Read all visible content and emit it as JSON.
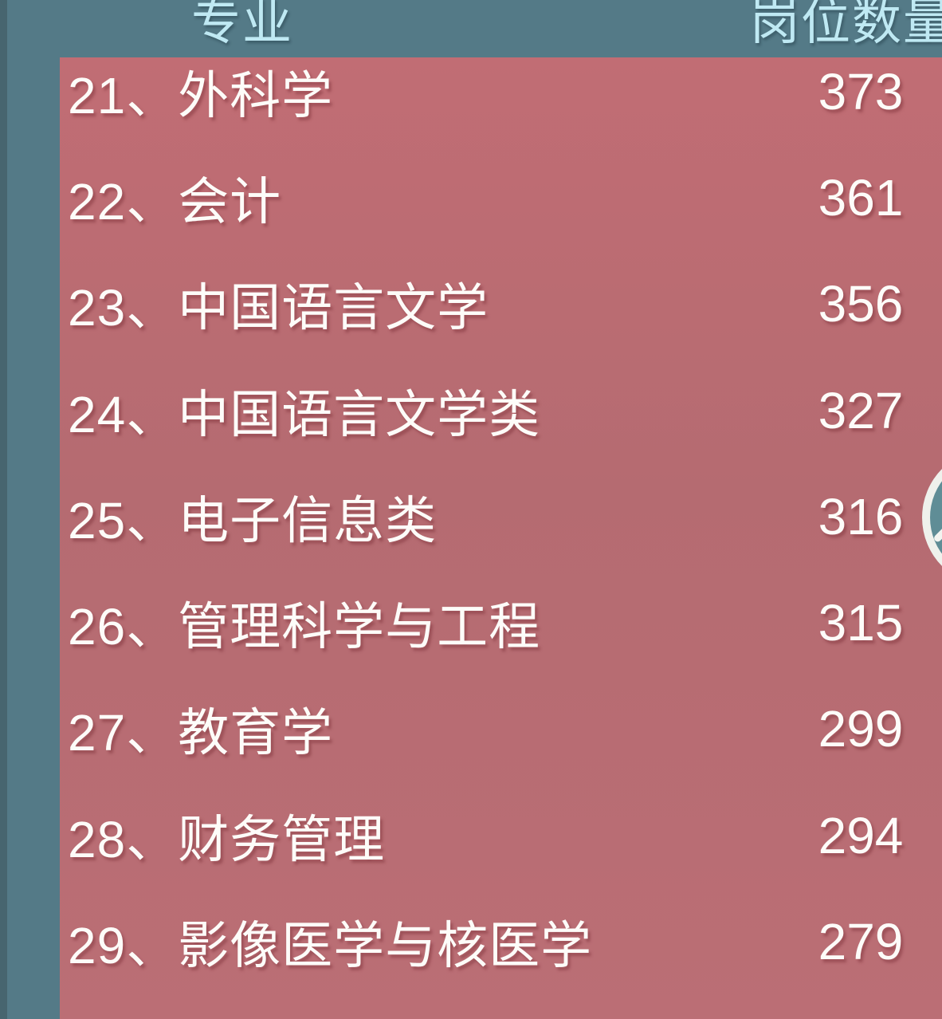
{
  "colors": {
    "background_teal": "#547a87",
    "background_edge": "#47656f",
    "panel_red": "#b96c73",
    "header_text": "#bfe9f3",
    "row_text": "#fdfcf9",
    "fab_ring": "#eff1ec",
    "fab_fill": "#5f8d96"
  },
  "header": {
    "major_column_label": "专业",
    "count_column_label": "岗位数量"
  },
  "table": {
    "rows": [
      {
        "label": "21、外科学",
        "count": "373"
      },
      {
        "label": "22、会计",
        "count": "361"
      },
      {
        "label": "23、中国语言文学",
        "count": "356"
      },
      {
        "label": "24、中国语言文学类",
        "count": "327"
      },
      {
        "label": "25、电子信息类",
        "count": "316"
      },
      {
        "label": "26、管理科学与工程",
        "count": "315"
      },
      {
        "label": "27、教育学",
        "count": "299"
      },
      {
        "label": "28、财务管理",
        "count": "294"
      },
      {
        "label": "29、影像医学与核医学",
        "count": "279"
      }
    ]
  },
  "fab": {
    "icon": "swipe-hint-icon"
  },
  "chart_data": {
    "type": "table",
    "columns": [
      "专业",
      "岗位数量"
    ],
    "ranks": [
      21,
      22,
      23,
      24,
      25,
      26,
      27,
      28,
      29
    ],
    "categories": [
      "外科学",
      "会计",
      "中国语言文学",
      "中国语言文学类",
      "电子信息类",
      "管理科学与工程",
      "教育学",
      "财务管理",
      "影像医学与核医学"
    ],
    "values": [
      373,
      361,
      356,
      327,
      316,
      315,
      299,
      294,
      279
    ],
    "title": "",
    "xlabel": "专业",
    "ylabel": "岗位数量"
  }
}
